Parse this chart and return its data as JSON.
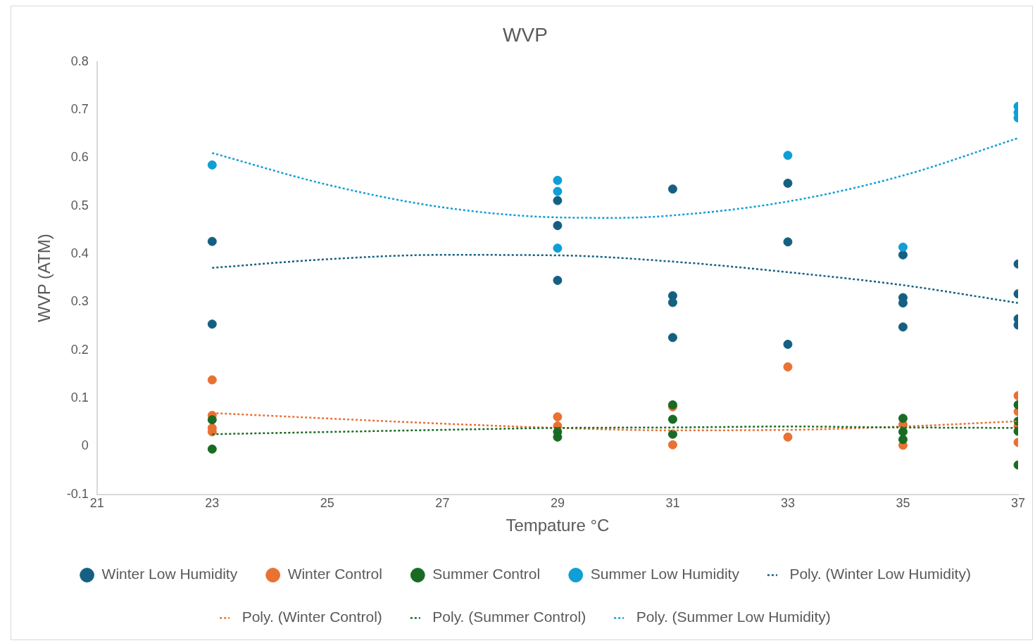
{
  "chart_data": {
    "type": "scatter",
    "title": "WVP",
    "xlabel": "Tempature °C",
    "ylabel": "WVP (ATM)",
    "xlim": [
      21,
      37
    ],
    "xticks": [
      21,
      23,
      25,
      27,
      29,
      31,
      33,
      35,
      37
    ],
    "ylim": [
      -0.1,
      0.8
    ],
    "yticks": [
      -0.1,
      0,
      0.1,
      0.2,
      0.3,
      0.4,
      0.5,
      0.6,
      0.7,
      0.8
    ],
    "grid": false,
    "legend": "bottom",
    "marker": "circle",
    "series": [
      {
        "name": "Winter Low Humidity",
        "color": "#156082",
        "x": [
          23,
          23,
          29,
          29,
          29,
          31,
          31,
          31,
          31,
          33,
          33,
          33,
          35,
          35,
          35,
          35,
          37,
          37,
          37,
          37
        ],
        "values": [
          0.426,
          0.254,
          0.511,
          0.459,
          0.345,
          0.535,
          0.313,
          0.299,
          0.226,
          0.547,
          0.425,
          0.212,
          0.398,
          0.309,
          0.298,
          0.248,
          0.379,
          0.317,
          0.265,
          0.252
        ]
      },
      {
        "name": "Winter Control",
        "color": "#e97132",
        "x": [
          23,
          23,
          23,
          23,
          29,
          29,
          31,
          31,
          33,
          33,
          35,
          35,
          37,
          37,
          37,
          37
        ],
        "values": [
          0.138,
          0.064,
          0.038,
          0.03,
          0.061,
          0.042,
          0.082,
          0.003,
          0.165,
          0.019,
          0.045,
          0.002,
          0.105,
          0.072,
          0.042,
          0.008
        ]
      },
      {
        "name": "Summer Control",
        "color": "#196b24",
        "x": [
          23,
          23,
          29,
          29,
          31,
          31,
          31,
          35,
          35,
          35,
          37,
          37,
          37,
          37
        ],
        "values": [
          0.055,
          -0.006,
          0.03,
          0.019,
          0.086,
          0.056,
          0.025,
          0.058,
          0.03,
          0.014,
          0.086,
          0.052,
          0.031,
          -0.039
        ]
      },
      {
        "name": "Summer Low Humidity",
        "color": "#0f9ed5",
        "x": [
          23,
          29,
          29,
          29,
          33,
          35,
          37,
          37,
          37
        ],
        "values": [
          0.585,
          0.553,
          0.53,
          0.412,
          0.605,
          0.414,
          0.707,
          0.694,
          0.683
        ]
      },
      {
        "name": "Poly. (Winter Low Humidity)",
        "type": "line",
        "line_style": "dotted",
        "marker": "none",
        "color": "#156082",
        "x": [
          23,
          25,
          27,
          29,
          31,
          33,
          35,
          37
        ],
        "values": [
          0.371,
          0.389,
          0.398,
          0.397,
          0.384,
          0.362,
          0.335,
          0.298
        ]
      },
      {
        "name": "Poly. (Winter Control)",
        "type": "line",
        "line_style": "dotted",
        "marker": "none",
        "color": "#e97132",
        "x": [
          23,
          27,
          29,
          31,
          33,
          35,
          37
        ],
        "values": [
          0.069,
          0.047,
          0.038,
          0.033,
          0.034,
          0.041,
          0.052
        ]
      },
      {
        "name": "Poly. (Summer Control)",
        "type": "line",
        "line_style": "dotted",
        "marker": "none",
        "color": "#196b24",
        "x": [
          23,
          27,
          29,
          31,
          33,
          35,
          37
        ],
        "values": [
          0.025,
          0.034,
          0.038,
          0.039,
          0.041,
          0.039,
          0.038
        ]
      },
      {
        "name": "Poly. (Summer Low Humidity)",
        "type": "line",
        "line_style": "dotted",
        "marker": "none",
        "color": "#0f9ed5",
        "x": [
          23,
          25,
          27,
          29,
          30,
          31,
          33,
          35,
          37
        ],
        "values": [
          0.61,
          0.544,
          0.497,
          0.476,
          0.475,
          0.48,
          0.509,
          0.563,
          0.641
        ]
      }
    ]
  }
}
